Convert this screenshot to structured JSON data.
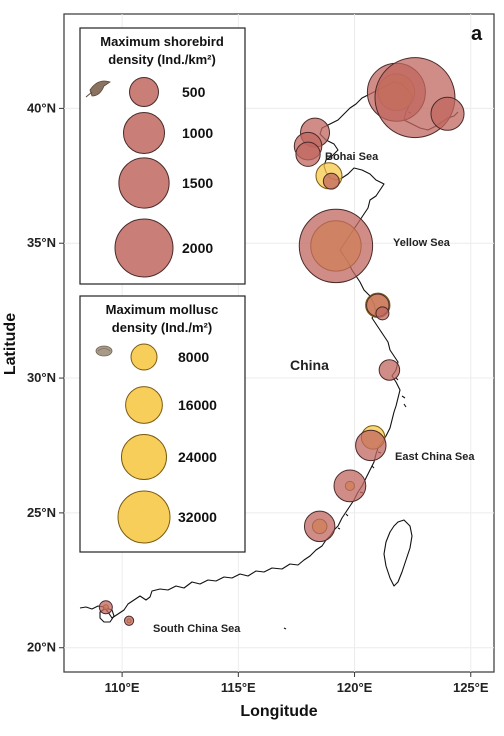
{
  "panel_label": "a",
  "axes": {
    "xlabel": "Longitude",
    "ylabel": "Latitude",
    "x_ticks": [
      {
        "value": 110,
        "label": "110°E"
      },
      {
        "value": 115,
        "label": "115°E"
      },
      {
        "value": 120,
        "label": "120°E"
      },
      {
        "value": 125,
        "label": "125°E"
      }
    ],
    "y_ticks": [
      {
        "value": 20,
        "label": "20°N"
      },
      {
        "value": 25,
        "label": "25°N"
      },
      {
        "value": 30,
        "label": "30°N"
      },
      {
        "value": 35,
        "label": "35°N"
      },
      {
        "value": 40,
        "label": "40°N"
      }
    ],
    "xlim": [
      107.5,
      126
    ],
    "ylim": [
      19.1,
      43.5
    ]
  },
  "labels": {
    "bohai": "Bohai Sea",
    "yellow": "Yellow Sea",
    "china": "China",
    "east_china": "East China Sea",
    "south_china": "South China Sea"
  },
  "colors": {
    "shorebird": "#c0675f",
    "mollusc": "#f7c948",
    "panel_border": "#444444"
  },
  "legend": {
    "shorebird": {
      "title_line1": "Maximum shorebird",
      "title_line2": "density (Ind./km²)",
      "icon": "shorebird-icon",
      "values": [
        "500",
        "1000",
        "1500",
        "2000"
      ]
    },
    "mollusc": {
      "title_line1": "Maximum mollusc",
      "title_line2": "density (Ind./m²)",
      "icon": "mollusc-shell-icon",
      "values": [
        "8000",
        "16000",
        "24000",
        "32000"
      ]
    }
  },
  "sites": [
    {
      "name": "site-1",
      "lon": 121.8,
      "lat": 40.6,
      "shorebird": 2000,
      "mollusc": 16000
    },
    {
      "name": "site-2",
      "lon": 122.6,
      "lat": 40.4,
      "shorebird": 3800,
      "mollusc": 0
    },
    {
      "name": "site-3",
      "lon": 124.0,
      "lat": 39.8,
      "shorebird": 650,
      "mollusc": 0
    },
    {
      "name": "site-4",
      "lon": 118.3,
      "lat": 39.1,
      "shorebird": 500,
      "mollusc": 0
    },
    {
      "name": "site-5",
      "lon": 118.0,
      "lat": 38.6,
      "shorebird": 450,
      "mollusc": 0
    },
    {
      "name": "site-6",
      "lon": 118.0,
      "lat": 38.3,
      "shorebird": 350,
      "mollusc": 0
    },
    {
      "name": "site-7",
      "lon": 118.9,
      "lat": 37.5,
      "shorebird": 0,
      "mollusc": 8000
    },
    {
      "name": "site-8",
      "lon": 119.0,
      "lat": 37.3,
      "shorebird": 150,
      "mollusc": 0
    },
    {
      "name": "site-9",
      "lon": 119.2,
      "lat": 34.9,
      "shorebird": 3200,
      "mollusc": 30000
    },
    {
      "name": "site-10",
      "lon": 121.0,
      "lat": 32.7,
      "shorebird": 300,
      "mollusc": 7000
    },
    {
      "name": "site-11",
      "lon": 121.2,
      "lat": 32.4,
      "shorebird": 100,
      "mollusc": 0
    },
    {
      "name": "site-12",
      "lon": 121.5,
      "lat": 30.3,
      "shorebird": 250,
      "mollusc": 0
    },
    {
      "name": "site-13",
      "lon": 120.8,
      "lat": 27.8,
      "shorebird": 0,
      "mollusc": 6500
    },
    {
      "name": "site-14",
      "lon": 120.7,
      "lat": 27.5,
      "shorebird": 550,
      "mollusc": 0
    },
    {
      "name": "site-15",
      "lon": 119.8,
      "lat": 26.0,
      "shorebird": 600,
      "mollusc": 1000
    },
    {
      "name": "site-16",
      "lon": 118.5,
      "lat": 24.5,
      "shorebird": 550,
      "mollusc": 2500
    },
    {
      "name": "site-17",
      "lon": 109.3,
      "lat": 21.5,
      "shorebird": 100,
      "mollusc": 300
    },
    {
      "name": "site-18",
      "lon": 110.3,
      "lat": 21.0,
      "shorebird": 50,
      "mollusc": 200
    }
  ]
}
